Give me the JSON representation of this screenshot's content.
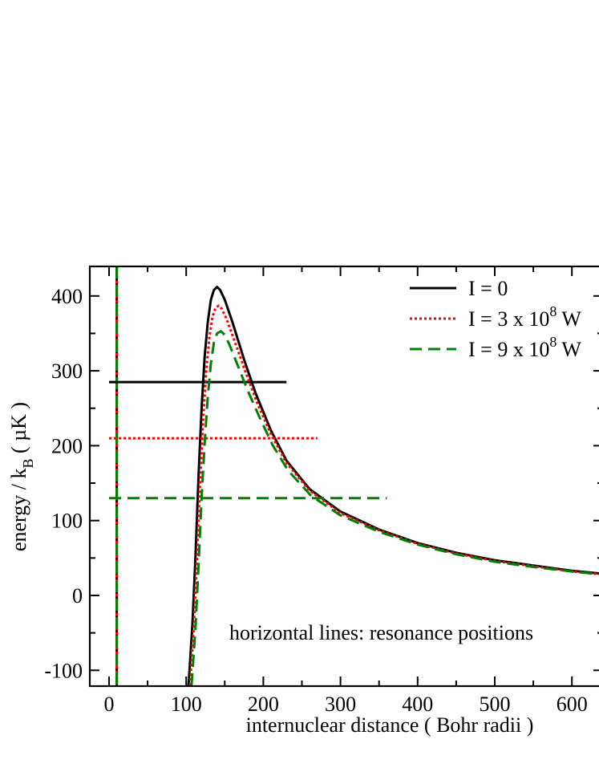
{
  "chart_data": {
    "type": "line",
    "title": "",
    "xlabel": "internuclear distance  ( Bohr radii )",
    "ylabel": {
      "main": "energy / k",
      "sub": "B",
      "unit": "  ( µK )"
    },
    "xlim": [
      -25,
      640
    ],
    "ylim": [
      -120,
      440
    ],
    "xticks": [
      0,
      100,
      200,
      300,
      400,
      500,
      600
    ],
    "yticks": [
      -100,
      0,
      100,
      200,
      300,
      400
    ],
    "grid": false,
    "legend_position": "top-right",
    "series": [
      {
        "name": "I = 0",
        "name_parts": {
          "base": "I = 0",
          "sup": "",
          "tail": ""
        },
        "color": "#000000",
        "dash": "solid",
        "peak_x": 140,
        "peak_y": 412,
        "wall_x": 103,
        "x": [
          103,
          108,
          112,
          116,
          120,
          124,
          128,
          132,
          136,
          140,
          144,
          150,
          160,
          175,
          190,
          210,
          230,
          260,
          300,
          350,
          400,
          450,
          500,
          550,
          600,
          640
        ],
        "y": [
          -120,
          -40,
          50,
          160,
          250,
          320,
          365,
          395,
          408,
          412,
          408,
          395,
          365,
          315,
          270,
          220,
          180,
          142,
          112,
          88,
          70,
          57,
          47,
          40,
          33,
          29
        ],
        "resonance": {
          "y": 285,
          "x_end": 230
        }
      },
      {
        "name": "I = 3 x 10^8 W",
        "name_parts": {
          "base": "I = 3 x 10",
          "sup": "8",
          "tail": " W"
        },
        "color": "#ff0000",
        "dash": "dotted",
        "peak_x": 142,
        "peak_y": 387,
        "wall_x": 105,
        "x": [
          105,
          110,
          114,
          118,
          122,
          126,
          130,
          134,
          138,
          142,
          146,
          152,
          162,
          177,
          192,
          210,
          230,
          260,
          300,
          350,
          400,
          450,
          500,
          550,
          600,
          640
        ],
        "y": [
          -120,
          -40,
          50,
          150,
          235,
          300,
          345,
          372,
          384,
          387,
          383,
          370,
          342,
          298,
          257,
          215,
          177,
          140,
          110,
          87,
          69,
          56,
          46,
          39,
          32,
          28
        ],
        "resonance": {
          "y": 210,
          "x_end": 270
        }
      },
      {
        "name": "I = 9 x 10^8 W",
        "name_parts": {
          "base": "I = 9 x 10",
          "sup": "8",
          "tail": " W"
        },
        "color": "#008000",
        "dash": "dashed",
        "peak_x": 145,
        "peak_y": 353,
        "wall_x": 107,
        "x": [
          107,
          112,
          116,
          120,
          124,
          128,
          132,
          136,
          140,
          145,
          150,
          156,
          165,
          180,
          195,
          212,
          232,
          262,
          300,
          350,
          400,
          450,
          500,
          550,
          600,
          640
        ],
        "y": [
          -120,
          -45,
          40,
          130,
          205,
          265,
          310,
          338,
          350,
          353,
          348,
          335,
          312,
          273,
          238,
          201,
          167,
          133,
          107,
          85,
          68,
          55,
          45,
          38,
          32,
          28
        ],
        "resonance": {
          "y": 130,
          "x_end": 360
        }
      }
    ],
    "vertical_line": {
      "x": 10
    },
    "annotations": [
      {
        "text": "horizontal lines: resonance positions"
      }
    ]
  }
}
